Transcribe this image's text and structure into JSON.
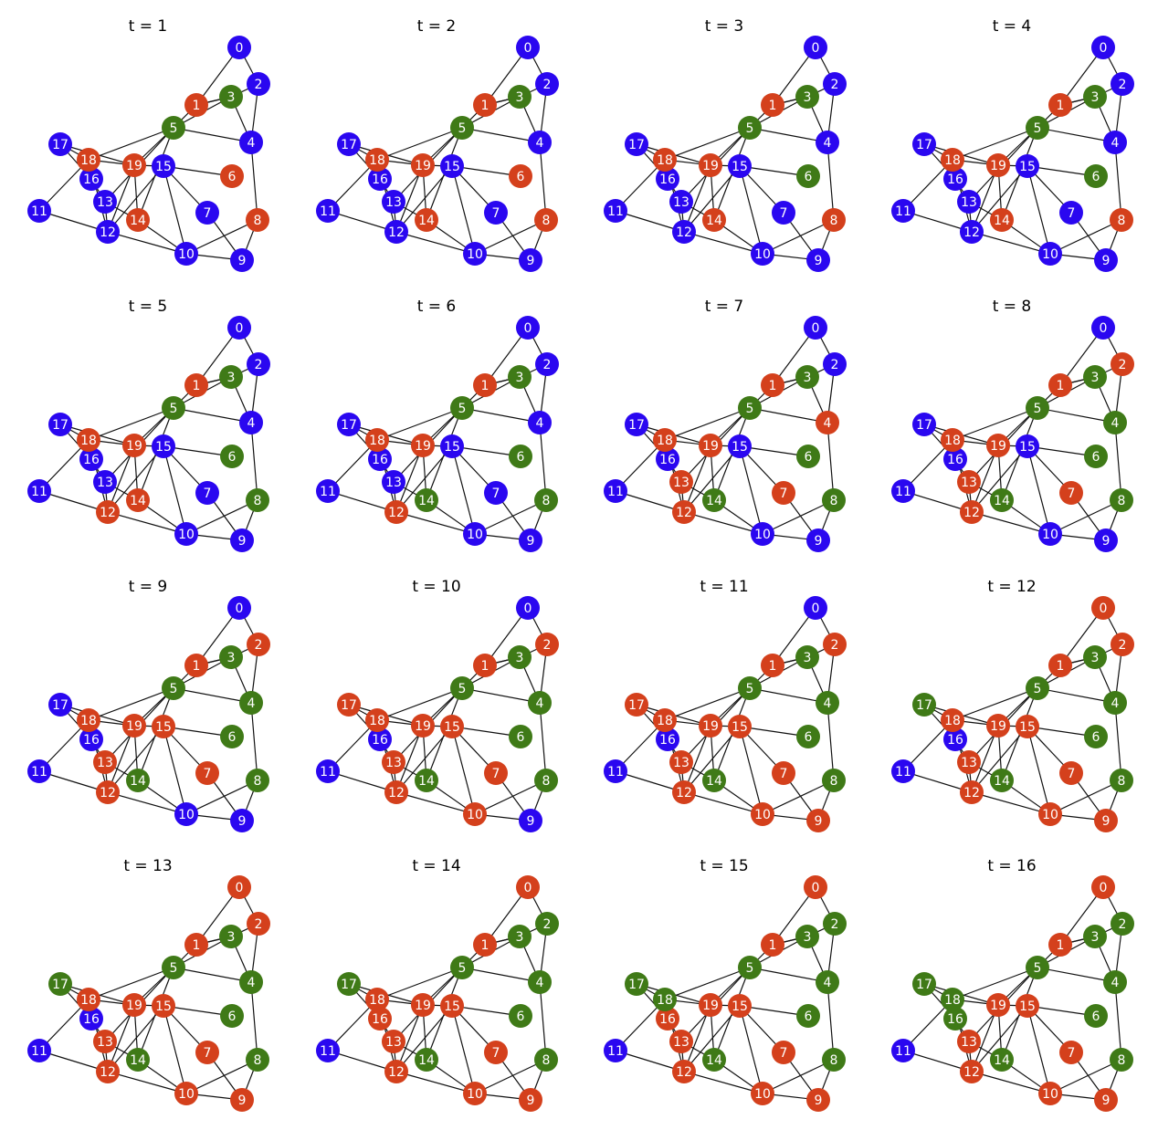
{
  "colors": {
    "S": "#2a07f0",
    "I": "#d4401c",
    "R": "#3f7a17"
  },
  "graph": {
    "nodes": [
      {
        "id": 0,
        "label": "0"
      },
      {
        "id": 1,
        "label": "1"
      },
      {
        "id": 2,
        "label": "2"
      },
      {
        "id": 3,
        "label": "3"
      },
      {
        "id": 4,
        "label": "4"
      },
      {
        "id": 5,
        "label": "5"
      },
      {
        "id": 6,
        "label": "6"
      },
      {
        "id": 7,
        "label": "7"
      },
      {
        "id": 8,
        "label": "8"
      },
      {
        "id": 9,
        "label": "9"
      },
      {
        "id": 10,
        "label": "10"
      },
      {
        "id": 11,
        "label": "11"
      },
      {
        "id": 12,
        "label": "12"
      },
      {
        "id": 13,
        "label": "13"
      },
      {
        "id": 14,
        "label": "14"
      },
      {
        "id": 15,
        "label": "15"
      },
      {
        "id": 16,
        "label": "16"
      },
      {
        "id": 17,
        "label": "17"
      },
      {
        "id": 18,
        "label": "18"
      },
      {
        "id": 19,
        "label": "19"
      }
    ],
    "edges": [
      [
        0,
        1
      ],
      [
        0,
        2
      ],
      [
        1,
        3
      ],
      [
        1,
        3
      ],
      [
        2,
        3
      ],
      [
        2,
        4
      ],
      [
        3,
        4
      ],
      [
        3,
        5
      ],
      [
        1,
        5
      ],
      [
        4,
        5
      ],
      [
        4,
        8
      ],
      [
        8,
        9
      ],
      [
        8,
        10
      ],
      [
        7,
        9
      ],
      [
        7,
        15
      ],
      [
        15,
        6
      ],
      [
        19,
        15
      ],
      [
        5,
        19
      ],
      [
        5,
        18
      ],
      [
        5,
        13
      ],
      [
        5,
        14
      ],
      [
        15,
        12
      ],
      [
        15,
        10
      ],
      [
        19,
        12
      ],
      [
        19,
        14
      ],
      [
        18,
        19
      ],
      [
        17,
        18
      ],
      [
        17,
        19
      ],
      [
        17,
        16
      ],
      [
        18,
        16
      ],
      [
        16,
        13
      ],
      [
        13,
        14
      ],
      [
        13,
        12
      ],
      [
        12,
        18
      ],
      [
        12,
        11
      ],
      [
        11,
        18
      ],
      [
        12,
        10
      ],
      [
        14,
        10
      ],
      [
        10,
        9
      ]
    ]
  },
  "panels": [
    {
      "title": "t = 1",
      "states": "SISRSRISISSSSSISSSII"
    },
    {
      "title": "t = 2",
      "states": "SISRSRISISSSSSISSSII"
    },
    {
      "title": "t = 3",
      "states": "SISRSRRSISSSSSISSSII"
    },
    {
      "title": "t = 4",
      "states": "SISRSRRSISSSSSISSSII"
    },
    {
      "title": "t = 5",
      "states": "SISRSRRSRSSSISISSSII"
    },
    {
      "title": "t = 6",
      "states": "SISRSRRSRSSSISRSSSII"
    },
    {
      "title": "t = 7",
      "states": "SISRIRRIRSSSIIRSSSII"
    },
    {
      "title": "t = 8",
      "states": "SIIRRRRIRSSSIIRSSSII"
    },
    {
      "title": "t = 9",
      "states": "SIIRRRRIRSSSIIRISSII"
    },
    {
      "title": "t = 10",
      "states": "SIIRRRRIRSISIIRISIII"
    },
    {
      "title": "t = 11",
      "states": "SIIRRRRIRIISIIRISIII"
    },
    {
      "title": "t = 12",
      "states": "IIIRRRRIRIISIIRISRII"
    },
    {
      "title": "t = 13",
      "states": "IIIRRRRIRIISIIRISRII"
    },
    {
      "title": "t = 14",
      "states": "IIRRRRRIRIISIIRIIRII"
    },
    {
      "title": "t = 15",
      "states": "IIRRRRRIRIISIIRIIRRI"
    },
    {
      "title": "t = 16",
      "states": "IIRRRRRIRIISIIRIRRRI"
    }
  ]
}
